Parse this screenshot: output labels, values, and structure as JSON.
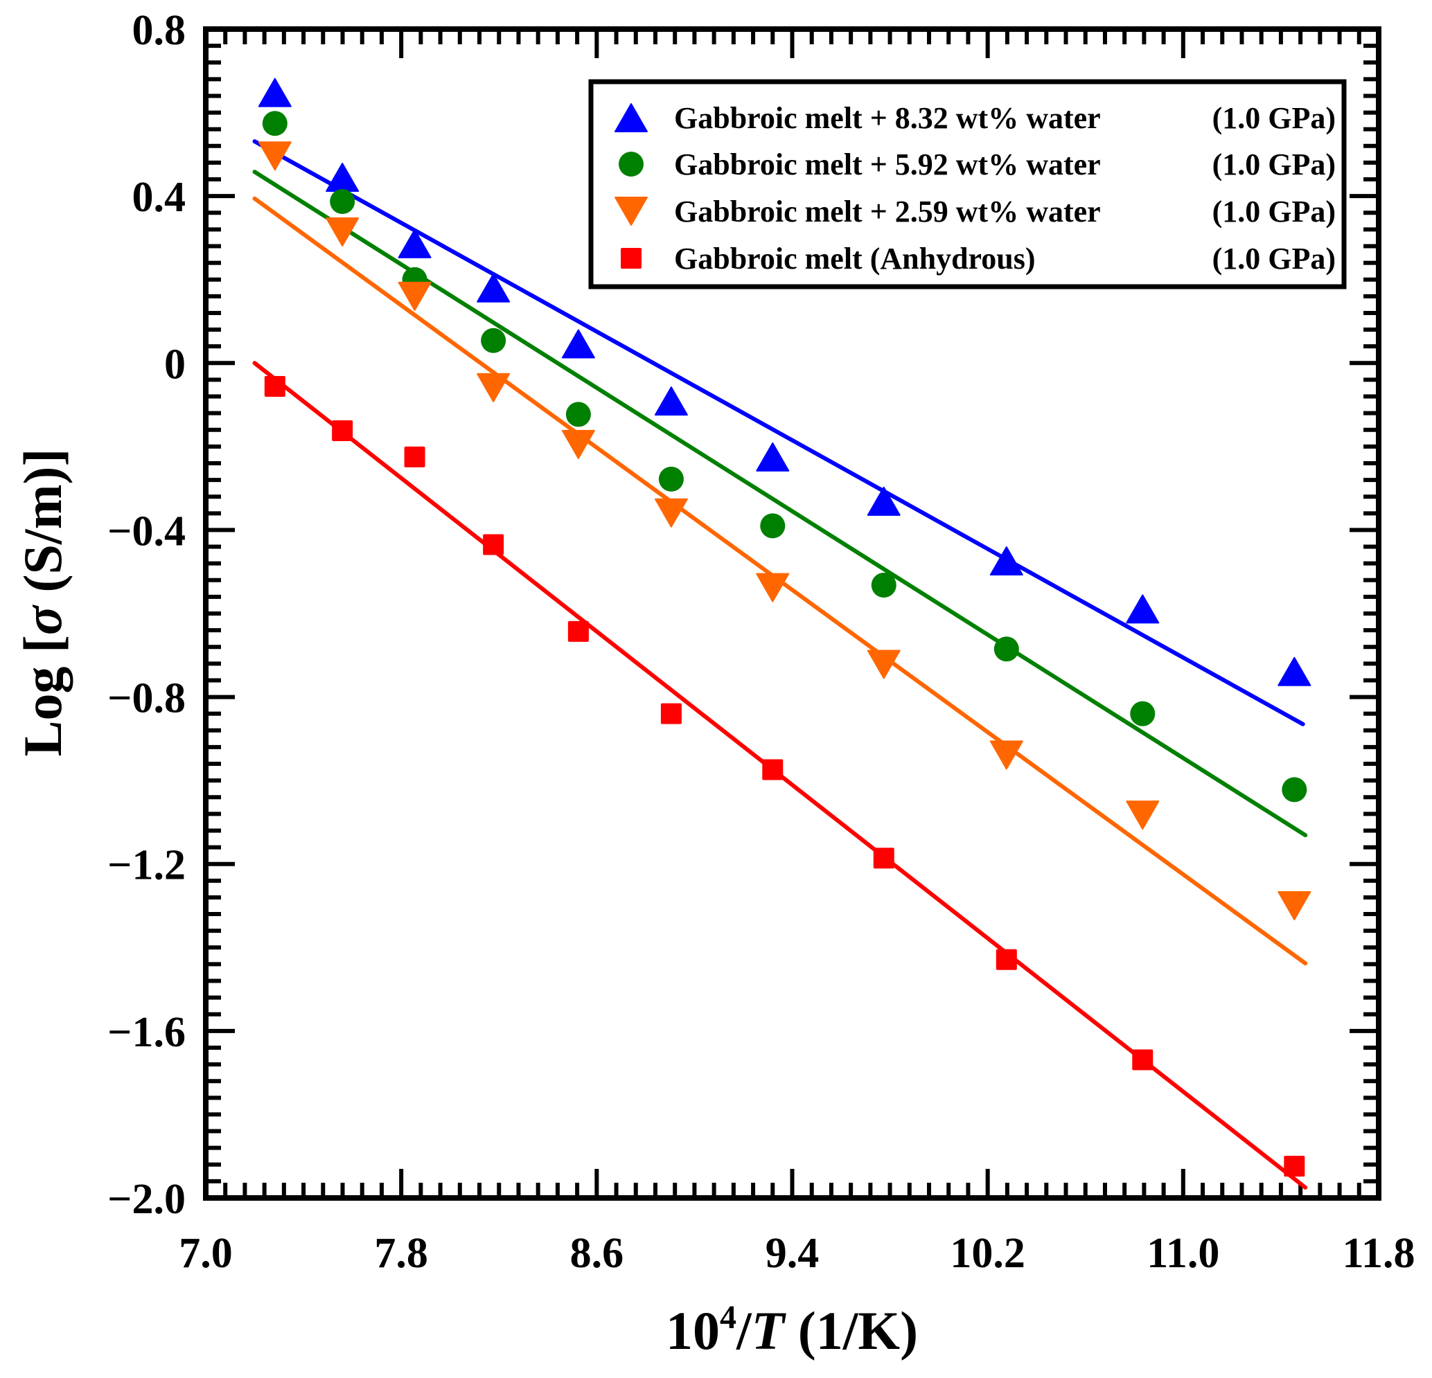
{
  "chart_data": {
    "type": "scatter",
    "title": "",
    "xlabel": {
      "base": "10",
      "superscript": "4",
      "slash": "/",
      "variable": "T",
      "unit": " (1/K)"
    },
    "ylabel": {
      "prefix": "Log [",
      "symbol": "σ",
      "suffix": " (S/m)]"
    },
    "xlim": [
      7.0,
      11.8
    ],
    "ylim": [
      -2.0,
      0.8
    ],
    "x_major_step": 0.8,
    "x_minor_step": 0.08,
    "y_major_step": 0.4,
    "y_minor_step": 0.04,
    "x_tick_labels": [
      "7.0",
      "7.8",
      "8.6",
      "9.4",
      "10.2",
      "11.0",
      "11.8"
    ],
    "y_tick_labels": [
      "0.8",
      "0.4",
      "0",
      "−0.4",
      "−0.8",
      "−1.2",
      "−1.6",
      "−2.0"
    ],
    "grid": false,
    "legend_position": "top-right",
    "x": [
      7.283,
      7.559,
      7.855,
      8.177,
      8.525,
      8.905,
      9.32,
      9.775,
      10.277,
      10.834,
      11.455
    ],
    "series": [
      {
        "name": "Gabbroic melt + 8.32 wt% water (1.0 GPa)",
        "legend_label": "Gabbroic melt + 8.32 wt% water",
        "legend_pressure": "(1.0 GPa)",
        "marker": "triangle-up",
        "color": "#0000FF",
        "values": [
          0.648,
          0.445,
          0.286,
          0.18,
          0.046,
          -0.091,
          -0.225,
          -0.331,
          -0.474,
          -0.589,
          -0.739
        ],
        "fit": {
          "x": [
            7.2,
            11.49
          ],
          "y": [
            0.531,
            -0.865
          ]
        }
      },
      {
        "name": "Gabbroic melt + 5.92 wt% water (1.0 GPa)",
        "legend_label": "Gabbroic melt + 5.92 wt% water",
        "legend_pressure": "(1.0 GPa)",
        "marker": "circle",
        "color": "#008000",
        "values": [
          0.574,
          0.387,
          0.2,
          0.054,
          -0.123,
          -0.278,
          -0.39,
          -0.532,
          -0.685,
          -0.84,
          -1.022
        ],
        "fit": {
          "x": [
            7.2,
            11.5
          ],
          "y": [
            0.458,
            -1.131
          ]
        }
      },
      {
        "name": "Gabbroic melt + 2.59 wt% water (1.0 GPa)",
        "legend_label": "Gabbroic melt + 2.59 wt% water",
        "legend_pressure": "(1.0 GPa)",
        "marker": "triangle-down",
        "color": "#FF6600",
        "values": [
          0.496,
          0.314,
          0.16,
          -0.059,
          -0.195,
          -0.359,
          -0.538,
          -0.722,
          -0.939,
          -1.083,
          -1.3
        ],
        "fit": {
          "x": [
            7.2,
            11.5
          ],
          "y": [
            0.394,
            -1.438
          ]
        }
      },
      {
        "name": "Gabbroic melt (Anhydrous) (1.0 GPa)",
        "legend_label": "Gabbroic melt (Anhydrous)",
        "legend_pressure": "(1.0 GPa)",
        "marker": "square",
        "color": "#FF0000",
        "values": [
          -0.056,
          -0.162,
          -0.225,
          -0.435,
          -0.643,
          -0.84,
          -0.974,
          -1.186,
          -1.429,
          -1.669,
          -1.924
        ],
        "fit": {
          "x": [
            7.2,
            11.5
          ],
          "y": [
            0.0,
            -1.975
          ]
        }
      }
    ]
  }
}
